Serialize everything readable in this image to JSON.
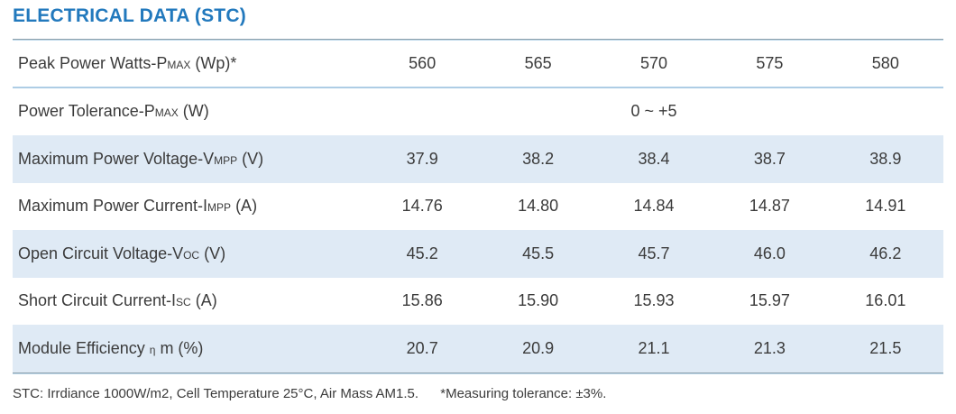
{
  "title": "ELECTRICAL DATA (STC)",
  "colors": {
    "accent_blue": "#2279bd",
    "alt_row_background": "#dfeaf5",
    "body_text": "#3b3b3b",
    "separator_blue": "#aecde5"
  },
  "table": {
    "rows": [
      {
        "label": {
          "pre": "Peak Power Watts-P",
          "sub": "MAX",
          "post": " (Wp)*"
        },
        "values": [
          "560",
          "565",
          "570",
          "575",
          "580"
        ]
      },
      {
        "label": {
          "pre": "Power Tolerance-P",
          "sub": "MAX",
          "post": " (W)"
        },
        "merged_value": "0 ~ +5"
      },
      {
        "label": {
          "pre": "Maximum Power Voltage-V",
          "sub": "MPP",
          "post": " (V)"
        },
        "values": [
          "37.9",
          "38.2",
          "38.4",
          "38.7",
          "38.9"
        ]
      },
      {
        "label": {
          "pre": "Maximum Power Current-I",
          "sub": "MPP",
          "post": " (A)"
        },
        "values": [
          "14.76",
          "14.80",
          "14.84",
          "14.87",
          "14.91"
        ]
      },
      {
        "label": {
          "pre": "Open Circuit Voltage-V",
          "sub": "OC",
          "post": " (V)"
        },
        "values": [
          "45.2",
          "45.5",
          "45.7",
          "46.0",
          "46.2"
        ]
      },
      {
        "label": {
          "pre": "Short Circuit Current-I",
          "sub": "SC",
          "post": " (A)"
        },
        "values": [
          "15.86",
          "15.90",
          "15.93",
          "15.97",
          "16.01"
        ]
      },
      {
        "label": {
          "pre": "Module Efficiency ",
          "sub": "η",
          "post": " m (%)"
        },
        "values": [
          "20.7",
          "20.9",
          "21.1",
          "21.3",
          "21.5"
        ]
      }
    ]
  },
  "footnote": {
    "stc": "STC: Irrdiance 1000W/m2, Cell Temperature 25°C, Air Mass AM1.5.",
    "tolerance": "*Measuring tolerance: ±3%."
  }
}
